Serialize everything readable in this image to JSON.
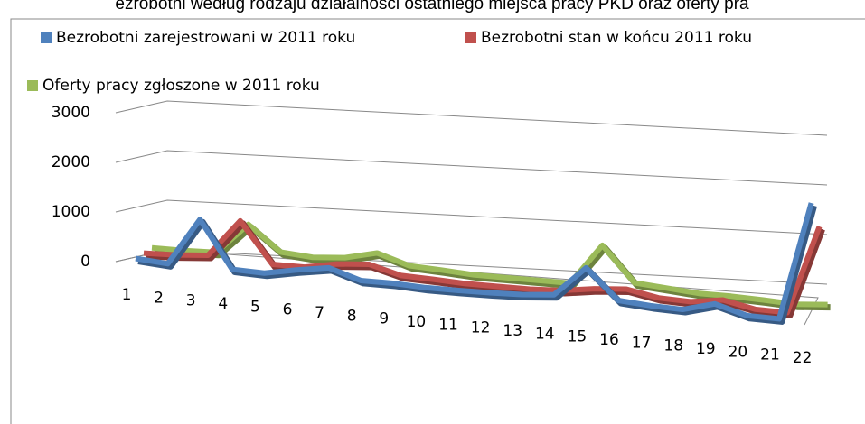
{
  "chart_data": {
    "type": "line3d",
    "title": "ezrobotni według rodzaju działalności ostatniego miejsca pracy PKD oraz oferty pra",
    "categories": [
      "1",
      "2",
      "3",
      "4",
      "5",
      "6",
      "7",
      "8",
      "9",
      "10",
      "11",
      "12",
      "13",
      "14",
      "15",
      "16",
      "17",
      "18",
      "19",
      "20",
      "21",
      "22"
    ],
    "series": [
      {
        "name": "Bezrobotni zarejestrowani w 2011 roku",
        "color": "#4f81bd",
        "values": [
          100,
          50,
          1000,
          50,
          30,
          150,
          250,
          50,
          50,
          20,
          20,
          30,
          50,
          100,
          700,
          100,
          50,
          30,
          200,
          20,
          10,
          2400
        ]
      },
      {
        "name": "Bezrobotni stan w końcu 2011 roku",
        "color": "#c0504d",
        "values": [
          80,
          100,
          150,
          900,
          80,
          80,
          200,
          250,
          80,
          60,
          30,
          30,
          30,
          60,
          150,
          200,
          80,
          60,
          150,
          20,
          10,
          1800
        ]
      },
      {
        "name": "Oferty pracy zgłoszone w 2011 roku",
        "color": "#9bbb59",
        "values": [
          60,
          60,
          80,
          700,
          200,
          150,
          200,
          350,
          150,
          120,
          80,
          80,
          80,
          80,
          900,
          200,
          150,
          100,
          100,
          80,
          50,
          100
        ]
      }
    ],
    "ylim": [
      0,
      3000
    ],
    "yticks": [
      0,
      1000,
      2000,
      3000
    ],
    "grid": true
  }
}
